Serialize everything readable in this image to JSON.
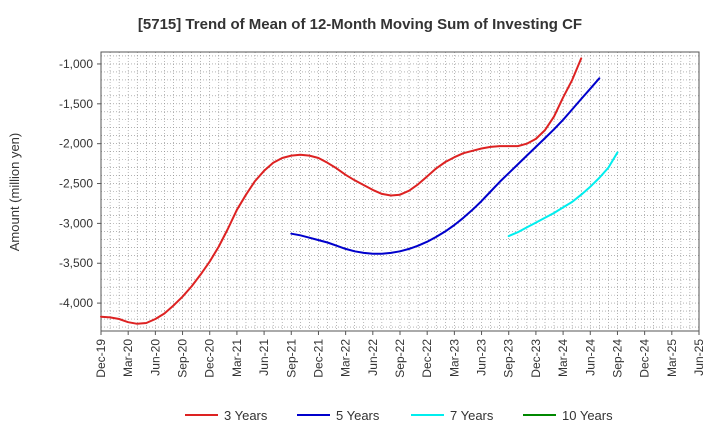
{
  "chart_data": {
    "type": "line",
    "title": "[5715]  Trend of Mean of 12-Month Moving Sum of Investing CF",
    "xlabel": "",
    "ylabel": "Amount (million yen)",
    "ylim": [
      -4350,
      -850
    ],
    "y_ticks": [
      -1000,
      -1500,
      -2000,
      -2500,
      -3000,
      -3500,
      -4000
    ],
    "y_tick_labels": [
      "-1,000",
      "-1,500",
      "-2,000",
      "-2,500",
      "-3,000",
      "-3,500",
      "-4,000"
    ],
    "x_range_months": [
      0,
      66
    ],
    "x_ticks": [
      {
        "label": "Dec-19",
        "m": 0
      },
      {
        "label": "Mar-20",
        "m": 3
      },
      {
        "label": "Jun-20",
        "m": 6
      },
      {
        "label": "Sep-20",
        "m": 9
      },
      {
        "label": "Dec-20",
        "m": 12
      },
      {
        "label": "Mar-21",
        "m": 15
      },
      {
        "label": "Jun-21",
        "m": 18
      },
      {
        "label": "Sep-21",
        "m": 21
      },
      {
        "label": "Dec-21",
        "m": 24
      },
      {
        "label": "Mar-22",
        "m": 27
      },
      {
        "label": "Jun-22",
        "m": 30
      },
      {
        "label": "Sep-22",
        "m": 33
      },
      {
        "label": "Dec-22",
        "m": 36
      },
      {
        "label": "Mar-23",
        "m": 39
      },
      {
        "label": "Jun-23",
        "m": 42
      },
      {
        "label": "Sep-23",
        "m": 45
      },
      {
        "label": "Dec-23",
        "m": 48
      },
      {
        "label": "Mar-24",
        "m": 51
      },
      {
        "label": "Jun-24",
        "m": 54
      },
      {
        "label": "Sep-24",
        "m": 57
      },
      {
        "label": "Dec-24",
        "m": 60
      },
      {
        "label": "Mar-25",
        "m": 63
      },
      {
        "label": "Jun-25",
        "m": 66
      }
    ],
    "series": [
      {
        "name": "3 Years",
        "color": "#dd2222",
        "points": [
          [
            0,
            -4170
          ],
          [
            1,
            -4180
          ],
          [
            2,
            -4200
          ],
          [
            3,
            -4240
          ],
          [
            4,
            -4260
          ],
          [
            5,
            -4250
          ],
          [
            6,
            -4200
          ],
          [
            7,
            -4130
          ],
          [
            8,
            -4030
          ],
          [
            9,
            -3920
          ],
          [
            10,
            -3790
          ],
          [
            11,
            -3640
          ],
          [
            12,
            -3480
          ],
          [
            13,
            -3290
          ],
          [
            14,
            -3070
          ],
          [
            15,
            -2830
          ],
          [
            16,
            -2640
          ],
          [
            17,
            -2470
          ],
          [
            18,
            -2340
          ],
          [
            19,
            -2240
          ],
          [
            20,
            -2180
          ],
          [
            21,
            -2150
          ],
          [
            22,
            -2140
          ],
          [
            23,
            -2150
          ],
          [
            24,
            -2180
          ],
          [
            25,
            -2240
          ],
          [
            26,
            -2310
          ],
          [
            27,
            -2390
          ],
          [
            28,
            -2460
          ],
          [
            29,
            -2520
          ],
          [
            30,
            -2580
          ],
          [
            31,
            -2630
          ],
          [
            32,
            -2650
          ],
          [
            33,
            -2640
          ],
          [
            34,
            -2590
          ],
          [
            35,
            -2510
          ],
          [
            36,
            -2410
          ],
          [
            37,
            -2310
          ],
          [
            38,
            -2230
          ],
          [
            39,
            -2170
          ],
          [
            40,
            -2120
          ],
          [
            41,
            -2090
          ],
          [
            42,
            -2060
          ],
          [
            43,
            -2040
          ],
          [
            44,
            -2030
          ],
          [
            45,
            -2030
          ],
          [
            46,
            -2030
          ],
          [
            47,
            -2000
          ],
          [
            48,
            -1940
          ],
          [
            49,
            -1830
          ],
          [
            50,
            -1660
          ],
          [
            51,
            -1420
          ],
          [
            52,
            -1200
          ],
          [
            53,
            -930
          ]
        ]
      },
      {
        "name": "5 Years",
        "color": "#0000cc",
        "points": [
          [
            21,
            -3130
          ],
          [
            22,
            -3150
          ],
          [
            23,
            -3180
          ],
          [
            24,
            -3210
          ],
          [
            25,
            -3240
          ],
          [
            26,
            -3280
          ],
          [
            27,
            -3320
          ],
          [
            28,
            -3350
          ],
          [
            29,
            -3370
          ],
          [
            30,
            -3380
          ],
          [
            31,
            -3380
          ],
          [
            32,
            -3370
          ],
          [
            33,
            -3350
          ],
          [
            34,
            -3320
          ],
          [
            35,
            -3280
          ],
          [
            36,
            -3230
          ],
          [
            37,
            -3170
          ],
          [
            38,
            -3100
          ],
          [
            39,
            -3020
          ],
          [
            40,
            -2930
          ],
          [
            41,
            -2830
          ],
          [
            42,
            -2720
          ],
          [
            43,
            -2600
          ],
          [
            44,
            -2480
          ],
          [
            45,
            -2370
          ],
          [
            46,
            -2260
          ],
          [
            47,
            -2150
          ],
          [
            48,
            -2040
          ],
          [
            49,
            -1930
          ],
          [
            50,
            -1820
          ],
          [
            51,
            -1700
          ],
          [
            52,
            -1570
          ],
          [
            53,
            -1440
          ],
          [
            54,
            -1310
          ],
          [
            55,
            -1180
          ]
        ]
      },
      {
        "name": "7 Years",
        "color": "#00eeee",
        "points": [
          [
            45,
            -3160
          ],
          [
            46,
            -3110
          ],
          [
            47,
            -3050
          ],
          [
            48,
            -2990
          ],
          [
            49,
            -2930
          ],
          [
            50,
            -2870
          ],
          [
            51,
            -2800
          ],
          [
            52,
            -2730
          ],
          [
            53,
            -2640
          ],
          [
            54,
            -2540
          ],
          [
            55,
            -2430
          ],
          [
            56,
            -2300
          ],
          [
            57,
            -2110
          ]
        ]
      },
      {
        "name": "10 Years",
        "color": "#008800",
        "points": []
      }
    ],
    "legend_position": "bottom-center",
    "grid": true
  }
}
